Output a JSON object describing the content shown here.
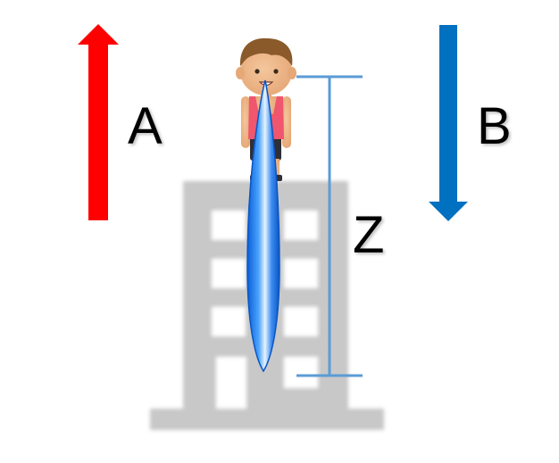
{
  "labels": {
    "a": "A",
    "b": "B",
    "z": "Z"
  },
  "colors": {
    "arrow_a": "#ff0000",
    "arrow_b": "#0070c0",
    "measure": "#5b9bd5",
    "drop": "#1a73e8",
    "building": "#c8c8c8",
    "window": "#ffffff"
  },
  "icons": {
    "person": "boy-icon",
    "building": "building-icon",
    "drop": "water-drop-icon"
  }
}
